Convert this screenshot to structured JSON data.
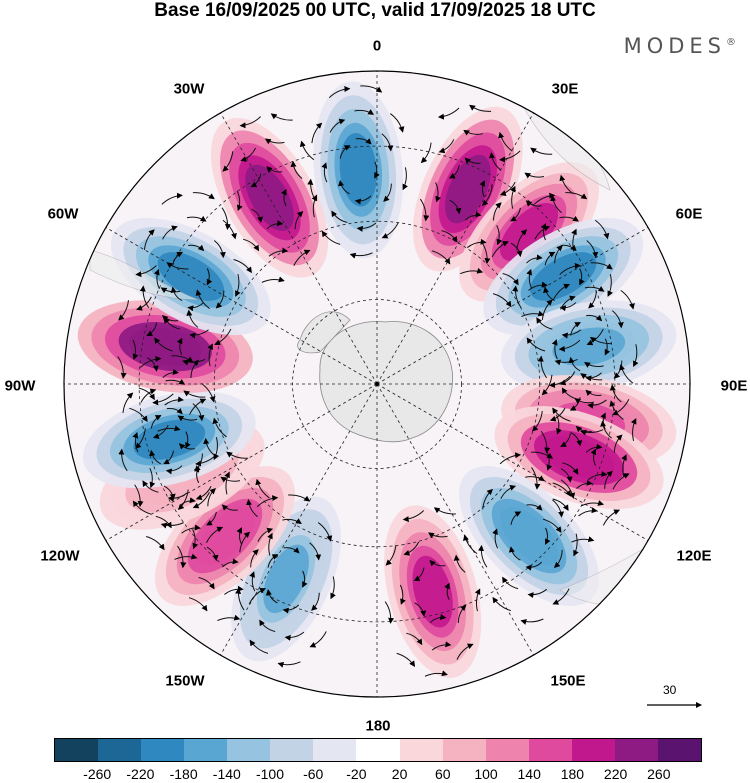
{
  "header": {
    "title": "Base 16/09/2025 00 UTC, valid 17/09/2025 18 UTC",
    "brand": "MODES",
    "brand_mark": "®"
  },
  "map": {
    "projection": "south-polar-stereographic",
    "longitude_labels": {
      "lon_0": "0",
      "lon_30e": "30E",
      "lon_60e": "60E",
      "lon_90e": "90E",
      "lon_120e": "120E",
      "lon_150e": "150E",
      "lon_180": "180",
      "lon_150w": "150W",
      "lon_120w": "120W",
      "lon_90w": "90W",
      "lon_60w": "60W",
      "lon_30w": "30W"
    },
    "anomaly_centers": [
      {
        "lon": -5,
        "sign": "neg",
        "peak": -180
      },
      {
        "lon": 25,
        "sign": "pos",
        "peak": 240
      },
      {
        "lon": 45,
        "sign": "pos",
        "peak": 200
      },
      {
        "lon": 60,
        "sign": "neg",
        "peak": -180
      },
      {
        "lon": 80,
        "sign": "neg",
        "peak": -160
      },
      {
        "lon": 100,
        "sign": "pos",
        "peak": 160
      },
      {
        "lon": 110,
        "sign": "pos",
        "peak": 220
      },
      {
        "lon": 135,
        "sign": "neg",
        "peak": -170
      },
      {
        "lon": 165,
        "sign": "pos",
        "peak": 200
      },
      {
        "lon": -155,
        "sign": "neg",
        "peak": -150
      },
      {
        "lon": -135,
        "sign": "pos",
        "peak": 180
      },
      {
        "lon": -115,
        "sign": "pos",
        "peak": 100
      },
      {
        "lon": -105,
        "sign": "neg",
        "peak": -200
      },
      {
        "lon": -80,
        "sign": "pos",
        "peak": 260
      },
      {
        "lon": -60,
        "sign": "neg",
        "peak": -180
      },
      {
        "lon": -30,
        "sign": "pos",
        "peak": 230
      }
    ],
    "reference_vector": {
      "value": "30"
    }
  },
  "colorbar": {
    "levels": [
      "-260",
      "-220",
      "-180",
      "-140",
      "-100",
      "-60",
      "-20",
      "20",
      "60",
      "100",
      "140",
      "180",
      "220",
      "260"
    ],
    "colors": [
      "#13425f",
      "#1c6796",
      "#2f88bf",
      "#5aa6d3",
      "#96c3e0",
      "#c3d3e6",
      "#e4e6f2",
      "#ffffff",
      "#f9d7db",
      "#f5b2c0",
      "#ee84ae",
      "#df4a9e",
      "#c2188d",
      "#8e1a83",
      "#5a146f"
    ]
  }
}
